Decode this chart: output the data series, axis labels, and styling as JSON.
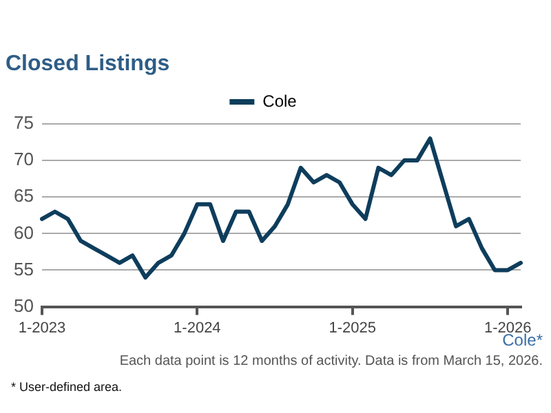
{
  "chart_data": {
    "type": "line",
    "title": "Closed Listings",
    "categories": [
      "1-2023",
      null,
      null,
      null,
      null,
      null,
      null,
      null,
      null,
      null,
      null,
      null,
      "1-2024",
      null,
      null,
      null,
      null,
      null,
      null,
      null,
      null,
      null,
      null,
      null,
      "1-2025",
      null,
      null,
      null,
      null,
      null,
      null,
      null,
      null,
      null,
      null,
      null,
      "1-2026",
      null
    ],
    "series": [
      {
        "name": "Cole",
        "color": "#0e3d5c",
        "values": [
          62,
          63,
          62,
          59,
          58,
          57,
          56,
          57,
          54,
          56,
          57,
          60,
          64,
          64,
          59,
          63,
          63,
          59,
          61,
          64,
          69,
          67,
          68,
          67,
          64,
          62,
          69,
          68,
          70,
          70,
          73,
          67,
          61,
          62,
          58,
          55,
          55,
          56
        ]
      }
    ],
    "ylim": [
      50,
      75
    ],
    "yticks": [
      50,
      55,
      60,
      65,
      70,
      75
    ],
    "grid": "y",
    "legend": "top",
    "marker": "none",
    "annotations": [
      "Cole*",
      "Each data point is 12 months of activity. Data is from March 15, 2026.",
      "* User-defined area."
    ]
  }
}
